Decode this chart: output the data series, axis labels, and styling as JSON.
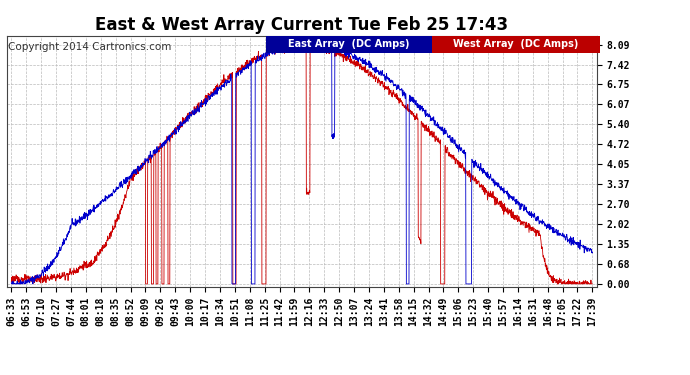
{
  "title": "East & West Array Current Tue Feb 25 17:43",
  "copyright": "Copyright 2014 Cartronics.com",
  "legend_east": "East Array  (DC Amps)",
  "legend_west": "West Array  (DC Amps)",
  "east_color": "#0000cc",
  "west_color": "#cc0000",
  "east_legend_bg": "#0000aa",
  "west_legend_bg": "#cc0000",
  "bg_color": "#ffffff",
  "grid_color": "#bbbbbb",
  "yticks": [
    0.0,
    0.68,
    1.35,
    2.02,
    2.7,
    3.37,
    4.05,
    4.72,
    5.4,
    6.07,
    6.75,
    7.42,
    8.09
  ],
  "ylim": [
    -0.1,
    8.4
  ],
  "xtick_labels": [
    "06:33",
    "06:53",
    "07:10",
    "07:27",
    "07:44",
    "08:01",
    "08:18",
    "08:35",
    "08:52",
    "09:09",
    "09:26",
    "09:43",
    "10:00",
    "10:17",
    "10:34",
    "10:51",
    "11:08",
    "11:25",
    "11:42",
    "11:59",
    "12:16",
    "12:33",
    "12:50",
    "13:07",
    "13:24",
    "13:41",
    "13:58",
    "14:15",
    "14:32",
    "14:49",
    "15:06",
    "15:23",
    "15:40",
    "15:57",
    "16:14",
    "16:31",
    "16:48",
    "17:05",
    "17:22",
    "17:39"
  ],
  "title_fontsize": 12,
  "tick_fontsize": 7,
  "copyright_fontsize": 7.5
}
